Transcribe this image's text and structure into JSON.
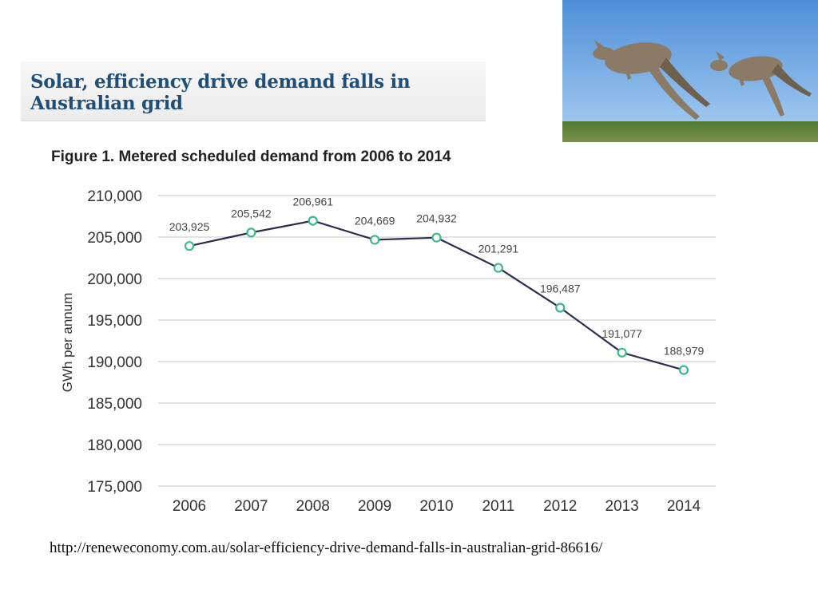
{
  "headline": {
    "line1": "Solar, efficiency drive demand falls in",
    "line2": "Australian grid"
  },
  "figure_title": "Figure 1. Metered scheduled demand from 2006 to 2014",
  "photo": {
    "description": "Two kangaroos hopping over grass under a blue sky",
    "icon": "kangaroo-photo"
  },
  "source_url": "http://reneweconomy.com.au/solar-efficiency-drive-demand-falls-in-australian-grid-86616/",
  "colors": {
    "line": "#2b2d4f",
    "marker": "#3cb98a",
    "grid": "#e3e3e3",
    "headline": "#1f4e79"
  },
  "chart_data": {
    "type": "line",
    "title": "Figure 1. Metered scheduled demand from 2006 to 2014",
    "xlabel": "",
    "ylabel": "GWh per annum",
    "categories": [
      "2006",
      "2007",
      "2008",
      "2009",
      "2010",
      "2011",
      "2012",
      "2013",
      "2014"
    ],
    "series": [
      {
        "name": "Metered scheduled demand",
        "values": [
          203925,
          205542,
          206961,
          204669,
          204932,
          201291,
          196487,
          191077,
          188979
        ]
      }
    ],
    "data_labels": [
      "203,925",
      "205,542",
      "206,961",
      "204,669",
      "204,932",
      "201,291",
      "196,487",
      "191,077",
      "188,979"
    ],
    "yticks": [
      175000,
      180000,
      185000,
      190000,
      195000,
      200000,
      205000,
      210000
    ],
    "ytick_labels": [
      "175,000",
      "180,000",
      "185,000",
      "190,000",
      "195,000",
      "200,000",
      "205,000",
      "210,000"
    ],
    "ylim": [
      175000,
      210000
    ],
    "grid": true,
    "legend": "none"
  }
}
